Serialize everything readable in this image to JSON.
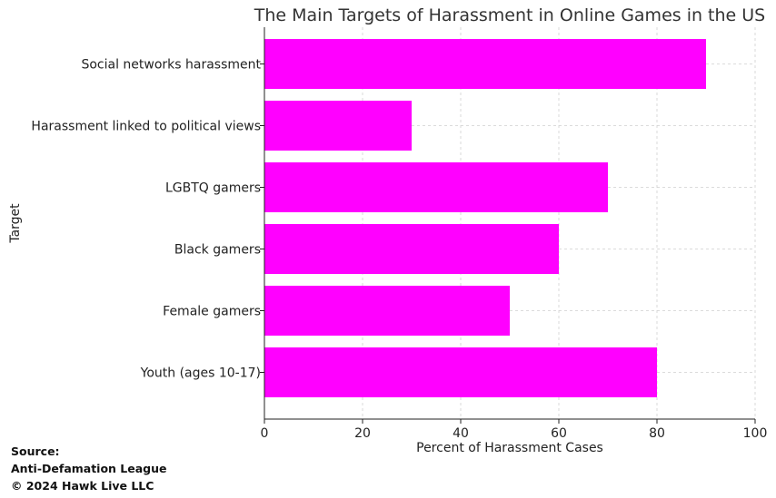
{
  "chart_data": {
    "type": "bar",
    "orientation": "horizontal",
    "title": "The Main Targets of Harassment in Online Games in the US",
    "xlabel": "Percent of Harassment Cases",
    "ylabel": "Target",
    "categories": [
      "Social networks harassment",
      "Harassment linked to political views",
      "LGBTQ gamers",
      "Black gamers",
      "Female gamers",
      "Youth (ages 10-17)"
    ],
    "values": [
      90,
      30,
      70,
      60,
      50,
      80
    ],
    "xlim": [
      0,
      100
    ],
    "xticks": [
      "0",
      "20",
      "40",
      "60",
      "80",
      "100"
    ],
    "grid": true,
    "bar_color": "#ff00ff"
  },
  "source": {
    "heading": "Source:",
    "name": "Anti-Defamation League",
    "copyright": "© 2024 Hawk Live LLC"
  }
}
